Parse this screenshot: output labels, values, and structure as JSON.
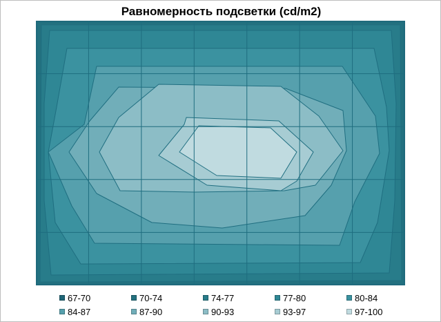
{
  "chart_data": {
    "type": "contour",
    "title": "Равномерность подсветки (cd/m2)",
    "grid": true,
    "legend_position": "bottom",
    "levels": [
      "67-70",
      "70-74",
      "74-77",
      "77-80",
      "80-84",
      "84-87",
      "87-90",
      "90-93",
      "93-97",
      "97-100"
    ],
    "level_colors": [
      "#1f6677",
      "#23717f",
      "#287c8a",
      "#2f8795",
      "#3b92a0",
      "#56a0ad",
      "#71aeb9",
      "#8cbdc6",
      "#a7ccd3",
      "#c0dbe0"
    ],
    "rows": 5,
    "cols": 7
  }
}
